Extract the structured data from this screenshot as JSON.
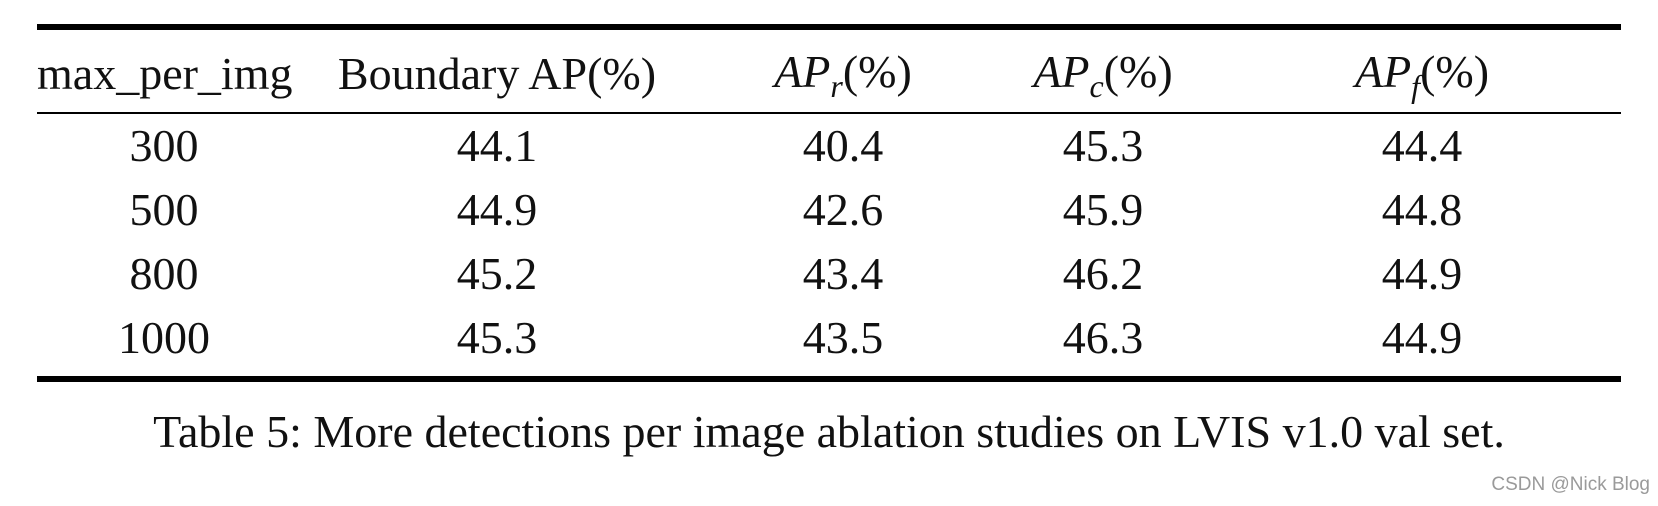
{
  "table": {
    "headers": [
      {
        "text": "max_per_img",
        "math": false
      },
      {
        "text": "Boundary AP(%)",
        "math": false
      },
      {
        "base": "AP",
        "sub": "r",
        "suffix": "(%)",
        "math": true
      },
      {
        "base": "AP",
        "sub": "c",
        "suffix": "(%)",
        "math": true
      },
      {
        "base": "AP",
        "sub": "f",
        "suffix": "(%)",
        "math": true
      }
    ],
    "rows": [
      [
        "300",
        "44.1",
        "40.4",
        "45.3",
        "44.4"
      ],
      [
        "500",
        "44.9",
        "42.6",
        "45.9",
        "44.8"
      ],
      [
        "800",
        "45.2",
        "43.4",
        "46.2",
        "44.9"
      ],
      [
        "1000",
        "45.3",
        "43.5",
        "46.3",
        "44.9"
      ]
    ]
  },
  "caption": "Table 5: More detections per image ablation studies on LVIS v1.0 val set.",
  "watermark": "CSDN @Nick Blog"
}
